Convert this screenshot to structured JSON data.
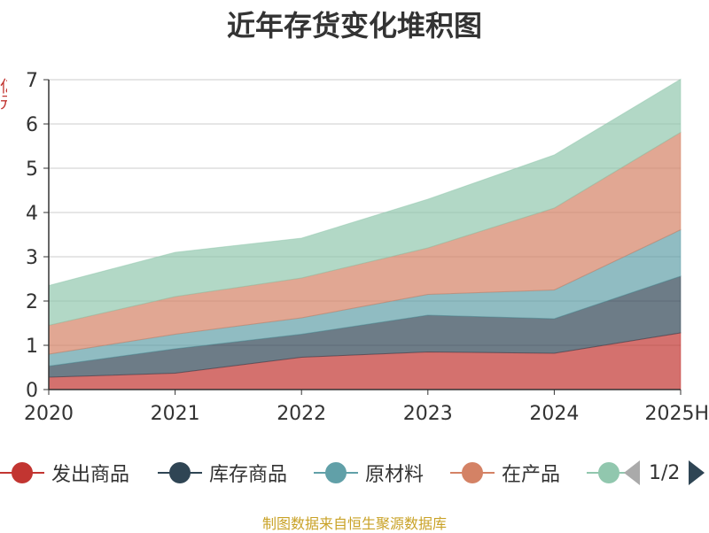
{
  "chart_data": {
    "type": "area",
    "stacked": true,
    "title": "近年存货变化堆积图",
    "categories": [
      "2020",
      "2021",
      "2022",
      "2023",
      "2024",
      "2025H"
    ],
    "ylabel": "亿元",
    "ylim": [
      0,
      7
    ],
    "yticks": [
      0,
      1,
      2,
      3,
      4,
      5,
      6,
      7
    ],
    "grid": true,
    "series": [
      {
        "name": "发出商品",
        "color": "#c23531",
        "values": [
          0.28,
          0.37,
          0.73,
          0.85,
          0.82,
          1.28
        ]
      },
      {
        "name": "库存商品",
        "color": "#2f4554",
        "values": [
          0.25,
          0.55,
          0.52,
          0.83,
          0.78,
          1.28
        ]
      },
      {
        "name": "原材料",
        "color": "#61a0a8",
        "values": [
          0.27,
          0.33,
          0.37,
          0.47,
          0.65,
          1.05
        ]
      },
      {
        "name": "在产品",
        "color": "#d48265",
        "values": [
          0.65,
          0.85,
          0.9,
          1.05,
          1.85,
          2.2
        ]
      },
      {
        "name": "",
        "color": "#91c7ae",
        "values": [
          0.9,
          1.0,
          0.9,
          1.1,
          1.2,
          1.2
        ]
      }
    ],
    "legend_position": "bottom"
  },
  "legend": {
    "page": "1/2"
  },
  "source": "制图数据来自恒生聚源数据库"
}
